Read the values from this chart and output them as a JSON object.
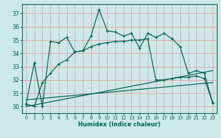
{
  "title": "",
  "xlabel": "Humidex (Indice chaleur)",
  "background_color": "#cce8e8",
  "grid_color": "#e8a0a0",
  "line_color": "#006655",
  "xlim": [
    -0.5,
    23.5
  ],
  "ylim": [
    29.5,
    37.7
  ],
  "yticks": [
    30,
    31,
    32,
    33,
    34,
    35,
    36,
    37
  ],
  "xticks": [
    0,
    1,
    2,
    3,
    4,
    5,
    6,
    7,
    8,
    9,
    10,
    11,
    12,
    13,
    14,
    15,
    16,
    17,
    18,
    19,
    20,
    21,
    22,
    23
  ],
  "series1_x": [
    0,
    1,
    2,
    3,
    4,
    5,
    6,
    7,
    8,
    9,
    10,
    11,
    12,
    13,
    14,
    15,
    16,
    17,
    18,
    19,
    20,
    21,
    22,
    23
  ],
  "series1_y": [
    30.2,
    33.3,
    30.0,
    34.9,
    34.8,
    35.2,
    34.1,
    34.2,
    35.3,
    37.3,
    35.7,
    35.6,
    35.3,
    35.5,
    34.4,
    35.5,
    35.2,
    35.5,
    35.1,
    34.5,
    32.5,
    32.7,
    32.5,
    30.3
  ],
  "series2_x": [
    0,
    1,
    2,
    3,
    4,
    5,
    6,
    7,
    8,
    9,
    10,
    11,
    12,
    13,
    14,
    15,
    16,
    17,
    18,
    19,
    20,
    21,
    22,
    23
  ],
  "series2_y": [
    30.2,
    30.0,
    31.8,
    32.5,
    33.2,
    33.5,
    34.1,
    34.2,
    34.5,
    34.7,
    34.8,
    34.9,
    34.9,
    35.0,
    35.0,
    35.1,
    32.0,
    32.0,
    32.1,
    32.2,
    32.2,
    32.3,
    32.1,
    30.3
  ],
  "line1_x": [
    0,
    23
  ],
  "line1_y": [
    30.0,
    32.7
  ],
  "line2_x": [
    0,
    23
  ],
  "line2_y": [
    30.5,
    31.8
  ]
}
